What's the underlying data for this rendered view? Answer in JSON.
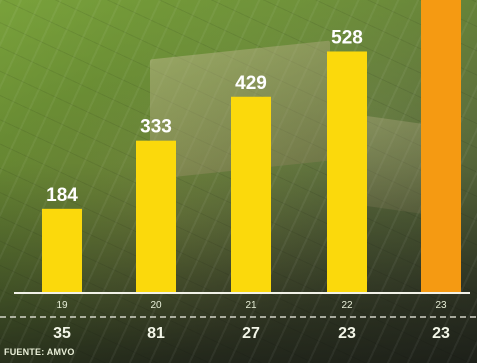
{
  "chart_data": {
    "type": "bar",
    "title": "",
    "xlabel": "",
    "ylabel": "",
    "categories": [
      "19",
      "20",
      "21",
      "22",
      "23"
    ],
    "values": [
      184,
      333,
      429,
      528,
      658
    ],
    "value_labels": [
      "184",
      "333",
      "429",
      "528",
      ""
    ],
    "secondary_labels": [
      "35",
      "81",
      "27",
      "23",
      "23"
    ],
    "ylim": [
      0,
      658
    ],
    "grid": false,
    "legend": "none",
    "colors": {
      "bar": "#fbd90c",
      "highlight_bar": "#f59a12",
      "axis": "#f2f2e8"
    },
    "highlight_index": 4
  },
  "footer": {
    "source": "FUENTE: AMVO"
  }
}
